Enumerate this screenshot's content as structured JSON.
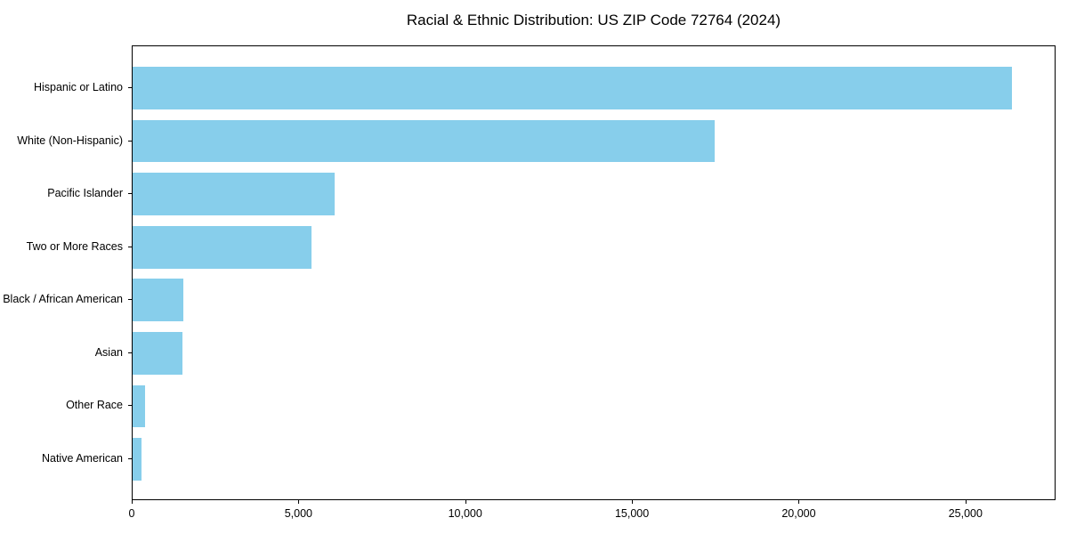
{
  "title": "Racial & Ethnic Distribution: US ZIP Code 72764 (2024)",
  "colors": {
    "bar": "#87CEEB",
    "axis": "#000000",
    "background": "#FFFFFF",
    "text": "#000000"
  },
  "chart_data": {
    "type": "bar",
    "orientation": "horizontal",
    "title": "Racial & Ethnic Distribution: US ZIP Code 72764 (2024)",
    "categories": [
      "Hispanic or Latino",
      "White (Non-Hispanic)",
      "Pacific Islander",
      "Two or More Races",
      "Black / African American",
      "Asian",
      "Other Race",
      "Native American"
    ],
    "values": [
      26360,
      17450,
      6050,
      5360,
      1520,
      1500,
      380,
      260
    ],
    "xlabel": "",
    "ylabel": "",
    "xlim": [
      0,
      27700
    ],
    "x_ticks": [
      0,
      5000,
      10000,
      15000,
      20000,
      25000
    ],
    "x_tick_labels": [
      "0",
      "5,000",
      "10,000",
      "15,000",
      "20,000",
      "25,000"
    ],
    "grid": false,
    "legend": null,
    "bar_color": "#87CEEB"
  }
}
